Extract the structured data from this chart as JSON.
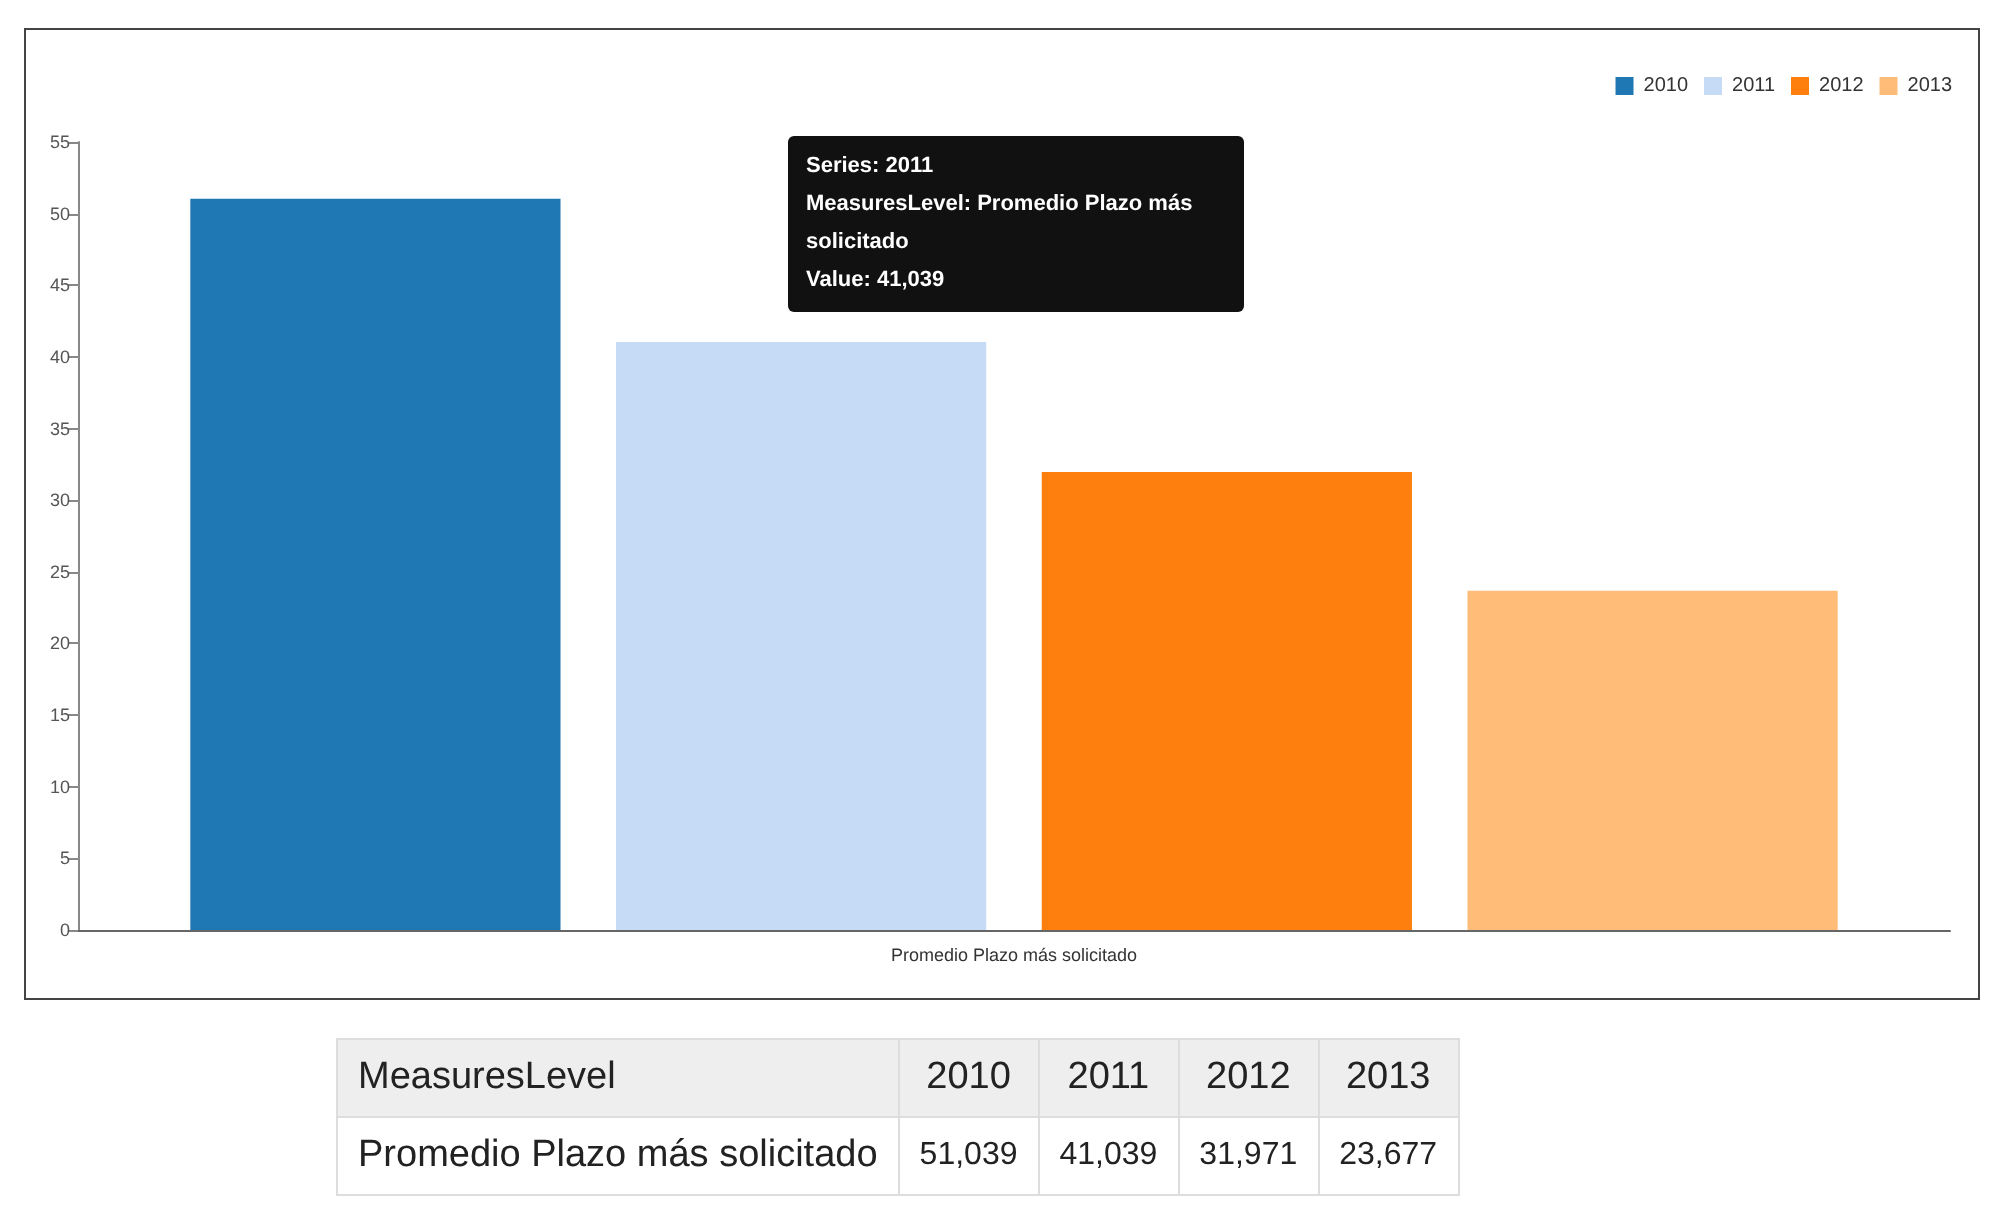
{
  "chart_data": {
    "type": "bar",
    "categories": [
      "Promedio Plazo más solicitado"
    ],
    "series": [
      {
        "name": "2010",
        "color": "#1f77b4",
        "values": [
          51.039
        ]
      },
      {
        "name": "2011",
        "color": "#c6dbf6",
        "values": [
          41.039
        ]
      },
      {
        "name": "2012",
        "color": "#ff7f0e",
        "values": [
          31.971
        ]
      },
      {
        "name": "2013",
        "color": "#ffbb78",
        "values": [
          23.677
        ]
      }
    ],
    "ylim": [
      0,
      55
    ],
    "yticks": [
      0,
      5,
      10,
      15,
      20,
      25,
      30,
      35,
      40,
      45,
      50,
      55
    ],
    "grid": false,
    "legend": "top right",
    "annotations": [
      "Series: 2011",
      "MeasuresLevel: Promedio Plazo más solicitado",
      "Value: 41,039",
      "MeasuresLevel",
      "51,039",
      "41,039",
      "31,971",
      "23,677"
    ]
  }
}
